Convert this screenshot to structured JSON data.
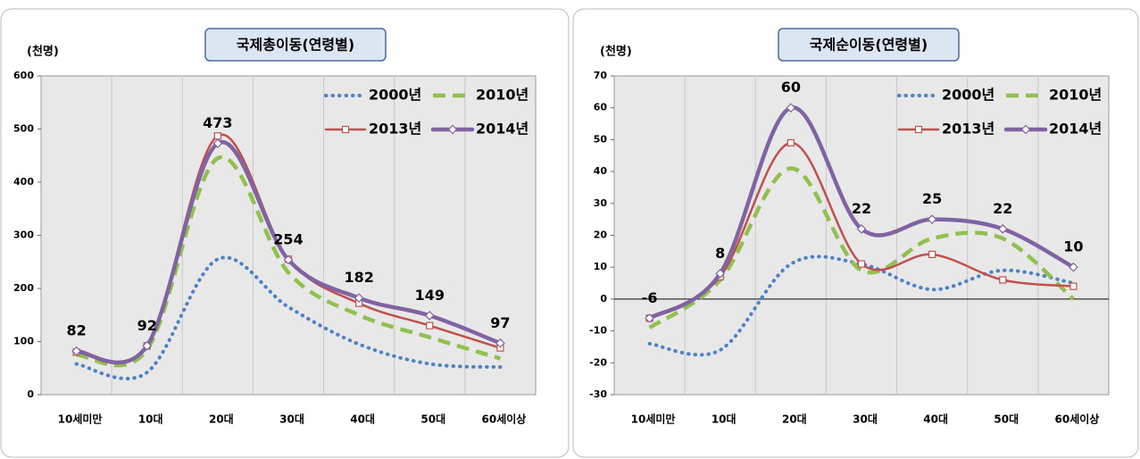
{
  "chart_data": [
    {
      "type": "line",
      "title": "국제총이동(연령별)",
      "y_label": "(천명)",
      "categories": [
        "10세미만",
        "10대",
        "20대",
        "30대",
        "40대",
        "50대",
        "60세이상"
      ],
      "ylim": [
        0,
        600
      ],
      "yticks": [
        0,
        100,
        200,
        300,
        400,
        500,
        600
      ],
      "series": [
        {
          "name": "2000년",
          "color": "#4f81c8",
          "dash": "dotted",
          "values": [
            58,
            42,
            255,
            165,
            95,
            58,
            52
          ]
        },
        {
          "name": "2010년",
          "color": "#92c050",
          "dash": "dashed",
          "values": [
            75,
            85,
            445,
            230,
            150,
            108,
            68
          ]
        },
        {
          "name": "2013년",
          "color": "#c0504d",
          "marker": "square",
          "values": [
            80,
            92,
            487,
            255,
            172,
            130,
            88
          ]
        },
        {
          "name": "2014년",
          "color": "#8064a2",
          "marker": "diamond",
          "values": [
            82,
            92,
            473,
            254,
            182,
            149,
            97
          ]
        }
      ]
    },
    {
      "type": "line",
      "title": "국제순이동(연령별)",
      "y_label": "(천명)",
      "categories": [
        "10세미만",
        "10대",
        "20대",
        "30대",
        "40대",
        "50대",
        "60세이상"
      ],
      "ylim": [
        -30,
        70
      ],
      "yticks": [
        -30,
        -20,
        -10,
        0,
        10,
        20,
        30,
        40,
        50,
        60,
        70
      ],
      "series": [
        {
          "name": "2000년",
          "color": "#4f81c8",
          "dash": "dotted",
          "values": [
            -14,
            -16,
            11,
            11,
            3,
            9,
            5
          ]
        },
        {
          "name": "2010년",
          "color": "#92c050",
          "dash": "dashed",
          "values": [
            -9,
            6,
            41,
            9,
            19,
            19,
            0
          ]
        },
        {
          "name": "2013년",
          "color": "#c0504d",
          "marker": "square",
          "values": [
            -6,
            7,
            49,
            11,
            14,
            6,
            4
          ]
        },
        {
          "name": "2014년",
          "color": "#8064a2",
          "marker": "diamond",
          "values": [
            -6,
            8,
            60,
            22,
            25,
            22,
            10
          ]
        }
      ]
    }
  ]
}
